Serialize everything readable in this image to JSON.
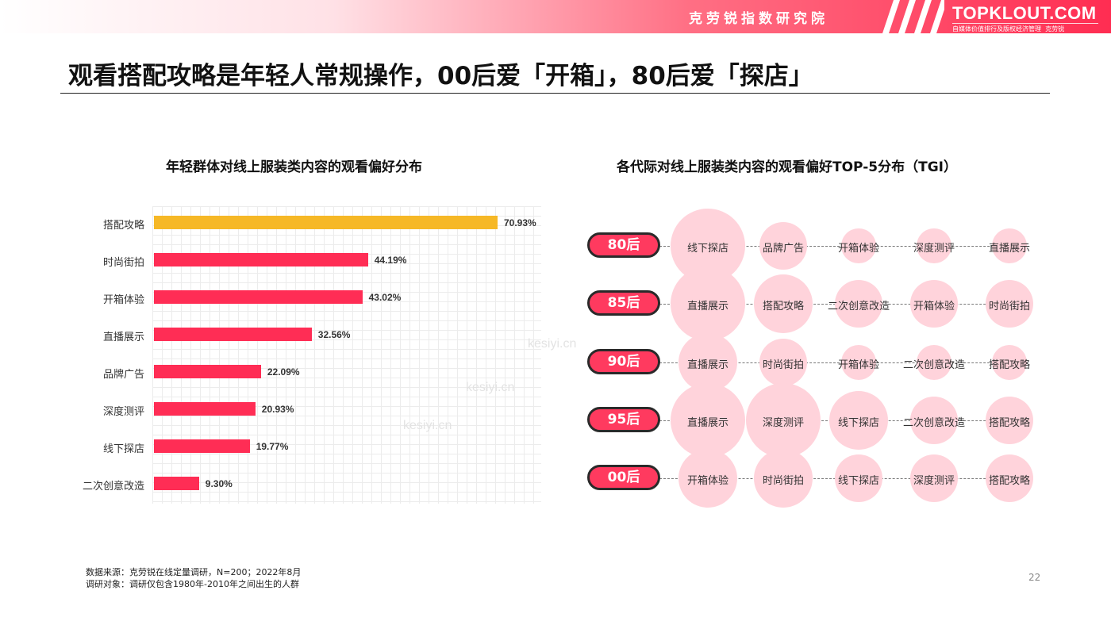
{
  "header": {
    "institute": "克劳锐指数研究院",
    "brand": "TOPKLOUT.COM",
    "brand_tagline": "自媒体价值排行及版权经济管理",
    "brand_tagline_name": "克劳锐"
  },
  "headline": "观看搭配攻略是年轻人常规操作，00后爱「开箱」，80后爱「探店」",
  "colors": {
    "accent": "#ff2d55",
    "highlight": "#f6b826",
    "circle": "#ffd3db"
  },
  "chart_data": [
    {
      "type": "bar",
      "orientation": "horizontal",
      "title": "年轻群体对线上服装类内容的观看偏好分布",
      "categories": [
        "搭配攻略",
        "时尚街拍",
        "开箱体验",
        "直播展示",
        "品牌广告",
        "深度测评",
        "线下探店",
        "二次创意改造"
      ],
      "values": [
        70.93,
        44.19,
        43.02,
        32.56,
        22.09,
        20.93,
        19.77,
        9.3
      ],
      "value_labels": [
        "70.93%",
        "44.19%",
        "43.02%",
        "32.56%",
        "22.09%",
        "20.93%",
        "19.77%",
        "9.30%"
      ],
      "highlight_index": 0,
      "xlim": [
        0,
        100
      ],
      "xlabel": "",
      "ylabel": ""
    },
    {
      "type": "table",
      "title": "各代际对线上服装类内容的观看偏好TOP-5分布（TGI）",
      "rows": [
        {
          "generation": "80后",
          "items": [
            {
              "label": "线下探店",
              "size": 5
            },
            {
              "label": "品牌广告",
              "size": 2
            },
            {
              "label": "开箱体验",
              "size": 1
            },
            {
              "label": "深度测评",
              "size": 1
            },
            {
              "label": "直播展示",
              "size": 1
            }
          ]
        },
        {
          "generation": "85后",
          "items": [
            {
              "label": "直播展示",
              "size": 5
            },
            {
              "label": "搭配攻略",
              "size": 3
            },
            {
              "label": "二次创意改造",
              "size": 2
            },
            {
              "label": "开箱体验",
              "size": 2
            },
            {
              "label": "时尚街拍",
              "size": 2
            }
          ]
        },
        {
          "generation": "90后",
          "items": [
            {
              "label": "直播展示",
              "size": 3
            },
            {
              "label": "时尚街拍",
              "size": 2
            },
            {
              "label": "开箱体验",
              "size": 1
            },
            {
              "label": "二次创意改造",
              "size": 1
            },
            {
              "label": "搭配攻略",
              "size": 1
            }
          ]
        },
        {
          "generation": "95后",
          "items": [
            {
              "label": "直播展示",
              "size": 5
            },
            {
              "label": "深度测评",
              "size": 5
            },
            {
              "label": "线下探店",
              "size": 3
            },
            {
              "label": "二次创意改造",
              "size": 2
            },
            {
              "label": "搭配攻略",
              "size": 2
            }
          ]
        },
        {
          "generation": "00后",
          "items": [
            {
              "label": "开箱体验",
              "size": 3
            },
            {
              "label": "时尚街拍",
              "size": 3
            },
            {
              "label": "线下探店",
              "size": 2
            },
            {
              "label": "深度测评",
              "size": 2
            },
            {
              "label": "搭配攻略",
              "size": 2
            }
          ]
        }
      ]
    }
  ],
  "footer": {
    "source": "数据来源：克劳锐在线定量调研，N=200；2022年8月",
    "subject": "调研对象：调研仅包含1980年-2010年之间出生的人群"
  },
  "watermark": "kesiyi.cn",
  "page_number": "22"
}
